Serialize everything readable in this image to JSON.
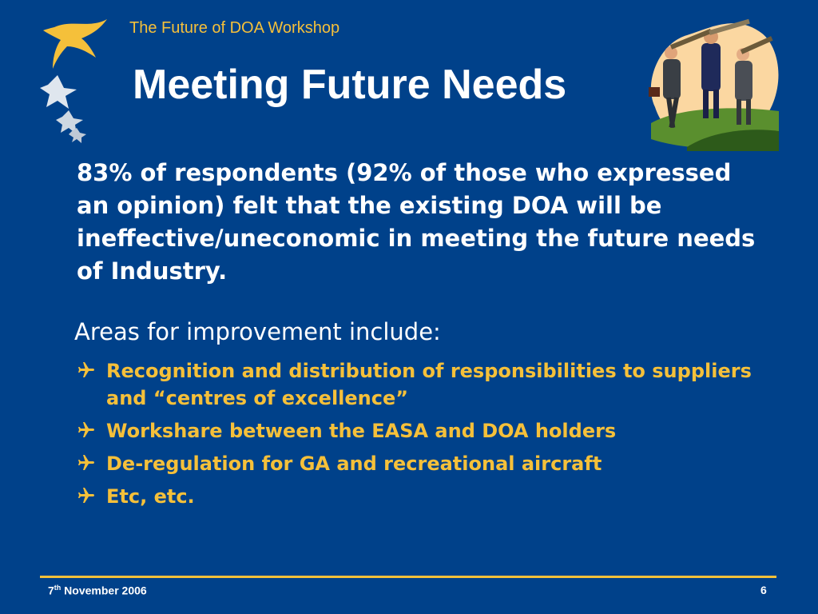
{
  "header": {
    "workshop_title": "The Future of DOA Workshop",
    "title": "Meeting Future Needs"
  },
  "body": {
    "paragraph": "83% of respondents (92% of those who expressed an opinion) felt that the existing DOA will be ineffective/uneconomic in meeting the future needs of Industry.",
    "areas_heading": "Areas for improvement include:",
    "bullets": [
      "Recognition and distribution of responsibilities to suppliers and “centres of excellence”",
      "Workshare between the EASA and DOA holders",
      "De-regulation for GA and recreational aircraft",
      "Etc, etc."
    ]
  },
  "footer": {
    "date_day": "7",
    "date_suffix": "th",
    "date_rest": " November 2006",
    "page_number": "6"
  },
  "icons": {
    "bullet": "airplane-icon",
    "logo": "stars-logo",
    "clipart": "businessmen-telescopes-clipart"
  },
  "colors": {
    "background": "#00418a",
    "accent": "#f5c03a",
    "text": "#ffffff"
  }
}
